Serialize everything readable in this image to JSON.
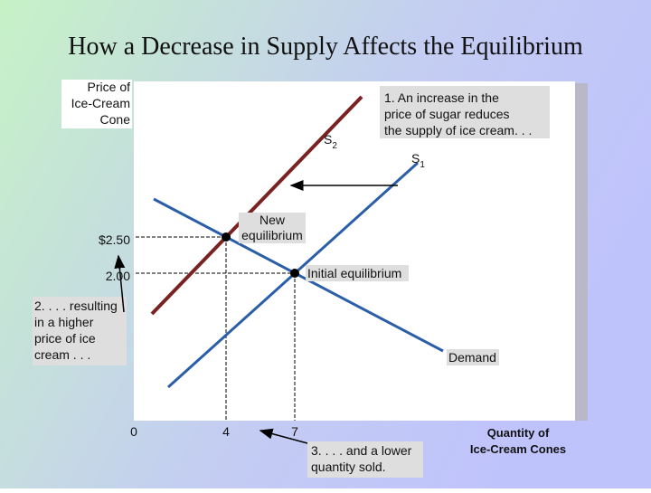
{
  "title": "How a Decrease in Supply Affects the Equilibrium",
  "y_axis_label": [
    "Price of",
    "Ice-Cream",
    "Cone"
  ],
  "x_axis_label": [
    "Quantity of",
    "Ice-Cream Cones"
  ],
  "y_ticks": [
    "$2.50",
    "2.00"
  ],
  "x_ticks": [
    "0",
    "4",
    "7"
  ],
  "curves": {
    "s2": {
      "letter": "S",
      "subscript": "2"
    },
    "s1": {
      "letter": "S",
      "subscript": "1"
    },
    "demand": "Demand"
  },
  "points": {
    "new": [
      "New",
      "equilibrium"
    ],
    "initial": "Initial equilibrium"
  },
  "notes": {
    "supply": [
      "1. An increase in the",
      "price of sugar reduces",
      "the supply of ice cream. . ."
    ],
    "price": [
      "2. . . . resulting",
      "in a higher",
      "price of ice",
      "cream . . ."
    ],
    "quantity": [
      "3. . . . and a lower",
      "quantity sold."
    ]
  }
}
